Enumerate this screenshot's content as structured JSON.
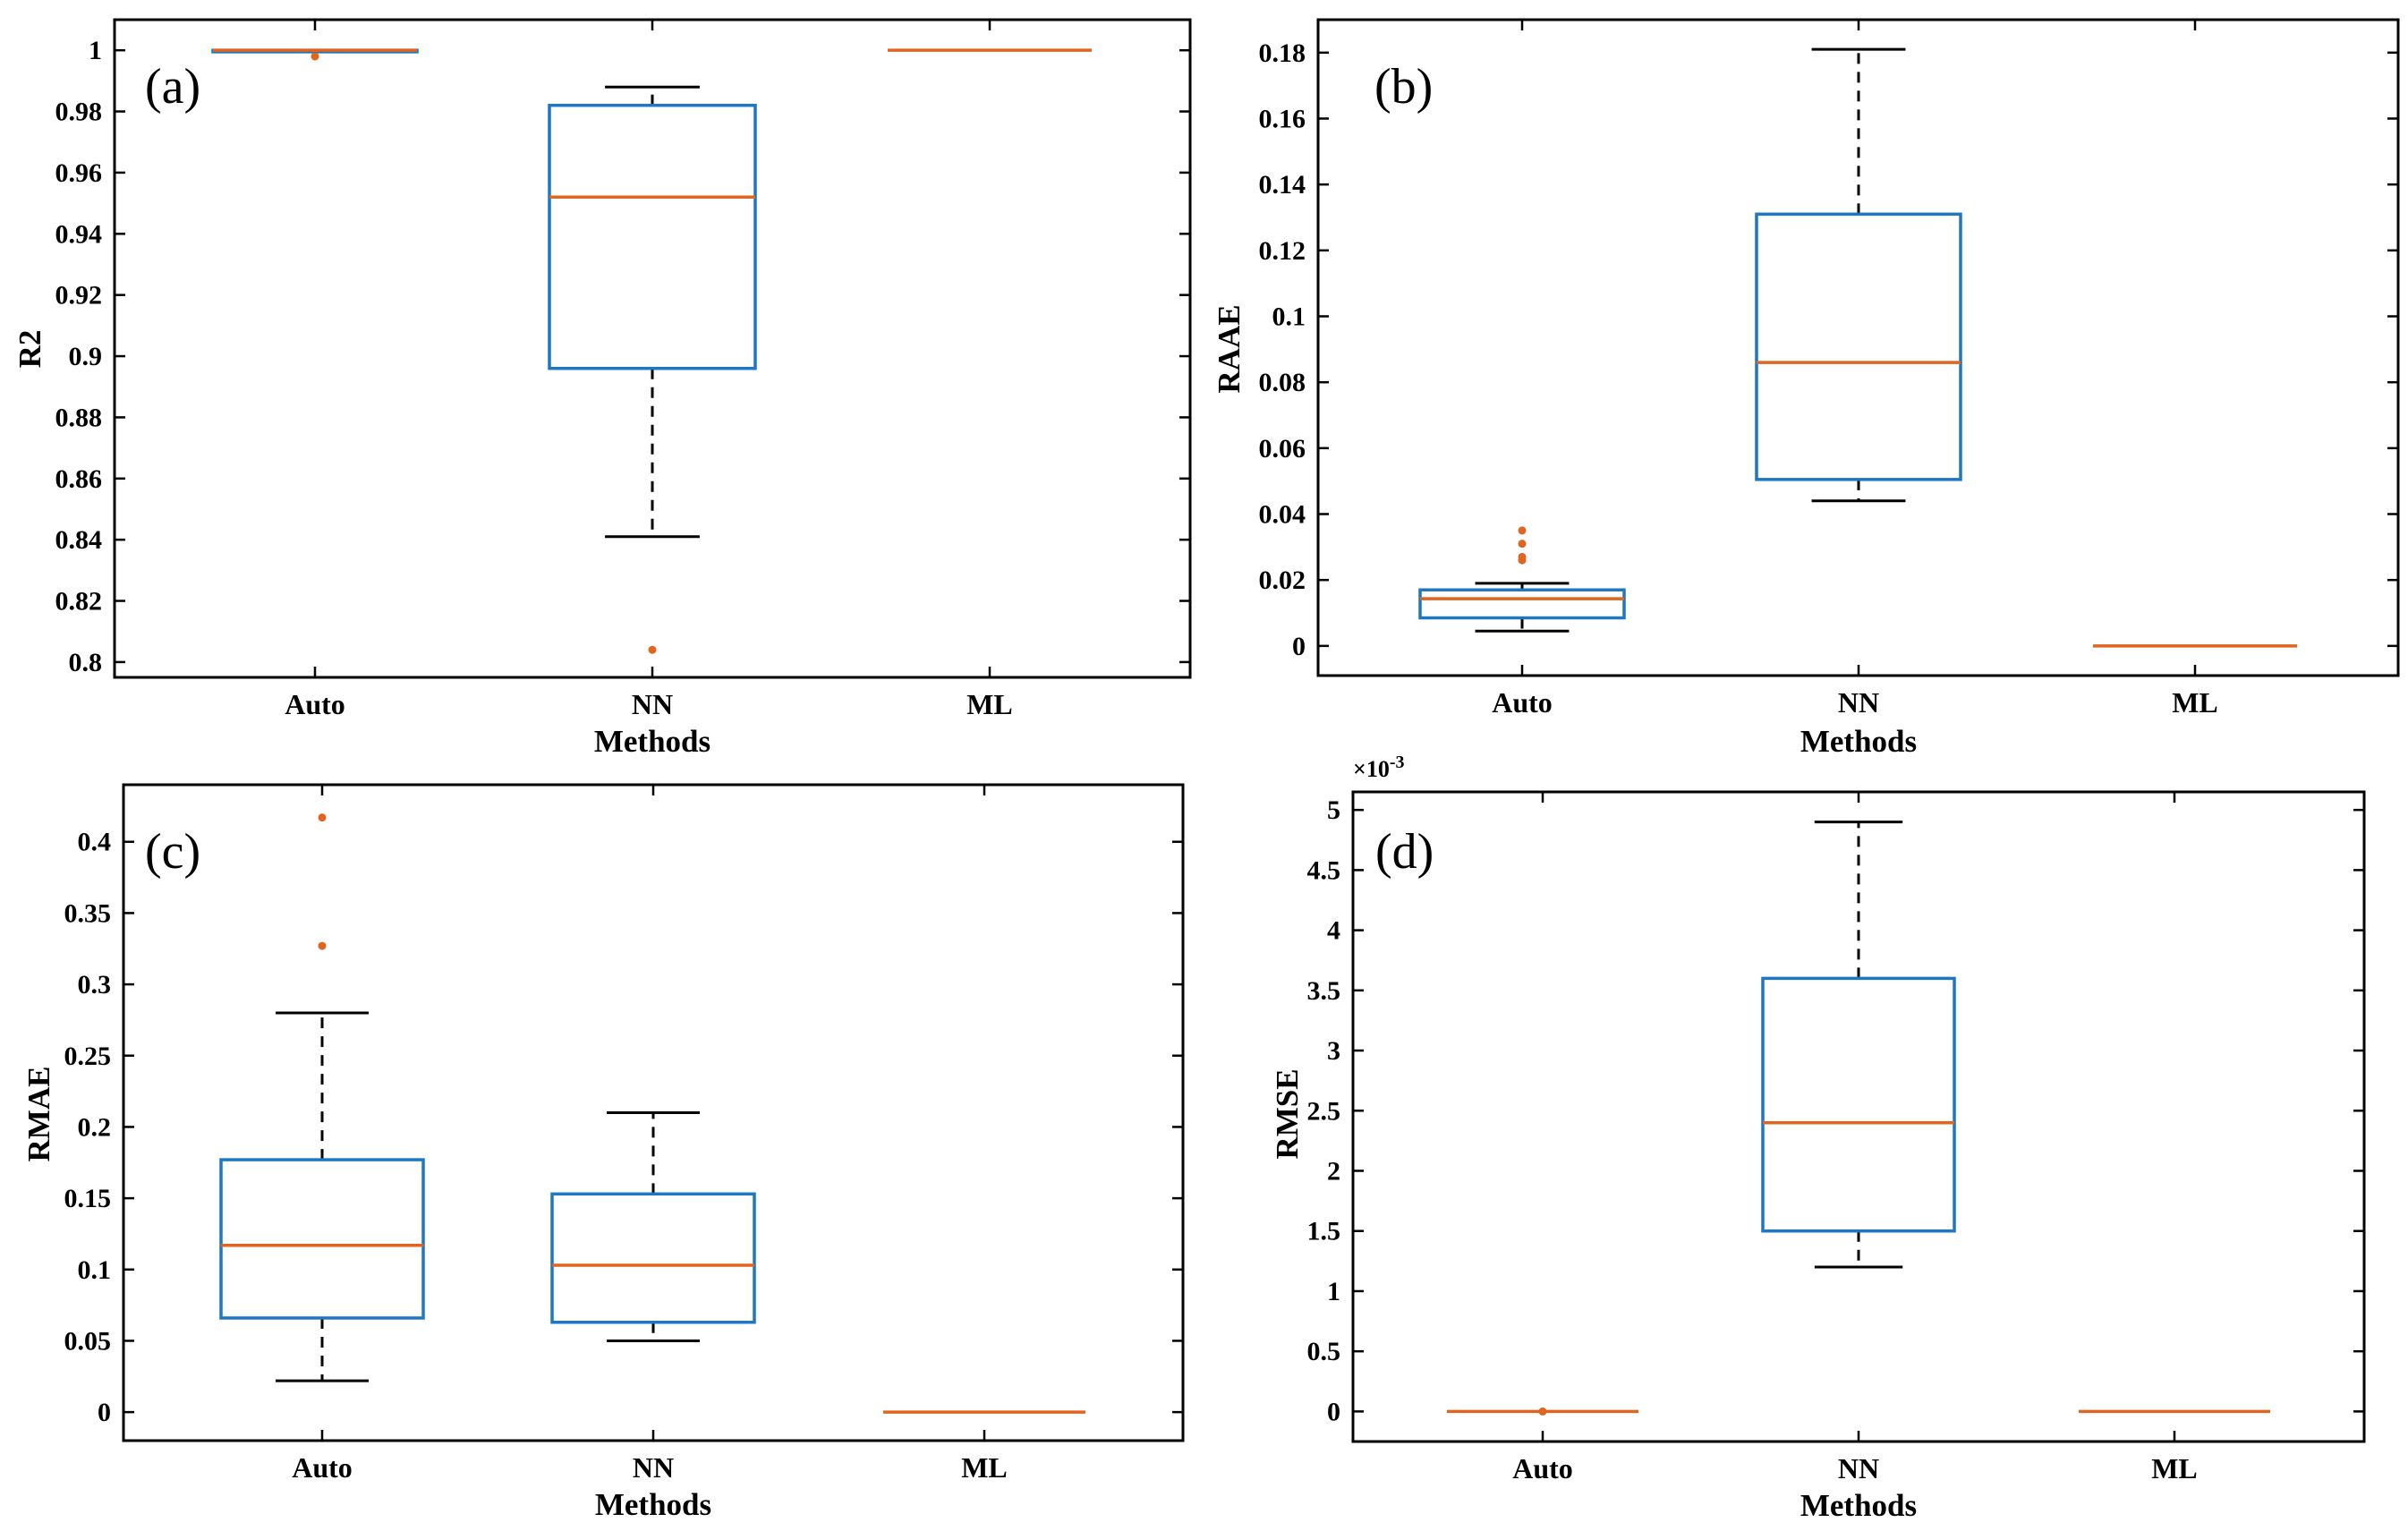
{
  "colors": {
    "box": "#1f77c4",
    "median": "#e0651e",
    "outlier": "#e0651e",
    "whisker": "#000000"
  },
  "chart_data": [
    {
      "type": "box",
      "panel": "(a)",
      "xlabel": "",
      "ylabel": "R2",
      "ylim": [
        0.795,
        1.01
      ],
      "yticks": [
        0.8,
        0.82,
        0.84,
        0.86,
        0.88,
        0.9,
        0.92,
        0.94,
        0.96,
        0.98,
        1
      ],
      "ytick_labels": [
        "0.8",
        "0.82",
        "0.84",
        "0.86",
        "0.88",
        "0.9",
        "0.92",
        "0.94",
        "0.96",
        "0.98",
        "1"
      ],
      "categories": [
        "Auto",
        "NN",
        "ML"
      ],
      "boxes": [
        {
          "whisker_low": 0.9995,
          "q1": 0.9995,
          "median": 1.0,
          "q3": 1.0,
          "whisker_high": 1.0,
          "outliers": [
            0.998
          ]
        },
        {
          "whisker_low": 0.841,
          "q1": 0.896,
          "median": 0.952,
          "q3": 0.982,
          "whisker_high": 0.988,
          "outliers": [
            0.804
          ]
        },
        {
          "whisker_low": 1.0,
          "q1": 1.0,
          "median": 1.0,
          "q3": 1.0,
          "whisker_high": 1.0,
          "outliers": []
        }
      ]
    },
    {
      "type": "box",
      "panel": "(b)",
      "xlabel": "Methods",
      "ylabel": "RAAE",
      "ylim": [
        -0.009,
        0.19
      ],
      "yticks": [
        0,
        0.02,
        0.04,
        0.06,
        0.08,
        0.1,
        0.12,
        0.14,
        0.16,
        0.18
      ],
      "ytick_labels": [
        "0",
        "0.02",
        "0.04",
        "0.06",
        "0.08",
        "0.1",
        "0.12",
        "0.14",
        "0.16",
        "0.18"
      ],
      "categories": [
        "Auto",
        "NN",
        "ML"
      ],
      "boxes": [
        {
          "whisker_low": 0.0045,
          "q1": 0.0085,
          "median": 0.0143,
          "q3": 0.017,
          "whisker_high": 0.019,
          "outliers": [
            0.026,
            0.027,
            0.031,
            0.035
          ]
        },
        {
          "whisker_low": 0.044,
          "q1": 0.0505,
          "median": 0.086,
          "q3": 0.131,
          "whisker_high": 0.181,
          "outliers": []
        },
        {
          "whisker_low": 0.0,
          "q1": 0.0,
          "median": 0.0,
          "q3": 0.0,
          "whisker_high": 0.0,
          "outliers": []
        }
      ]
    },
    {
      "type": "box",
      "panel": "(c)",
      "xlabel": "Methods",
      "ylabel": "RMAE",
      "ylim": [
        -0.02,
        0.44
      ],
      "yticks": [
        0,
        0.05,
        0.1,
        0.15,
        0.2,
        0.25,
        0.3,
        0.35,
        0.4
      ],
      "ytick_labels": [
        "0",
        "0.05",
        "0.1",
        "0.15",
        "0.2",
        "0.25",
        "0.3",
        "0.35",
        "0.4"
      ],
      "categories": [
        "Auto",
        "NN",
        "ML"
      ],
      "boxes": [
        {
          "whisker_low": 0.022,
          "q1": 0.066,
          "median": 0.117,
          "q3": 0.177,
          "whisker_high": 0.28,
          "outliers": [
            0.327,
            0.417
          ]
        },
        {
          "whisker_low": 0.05,
          "q1": 0.063,
          "median": 0.103,
          "q3": 0.153,
          "whisker_high": 0.21,
          "outliers": []
        },
        {
          "whisker_low": 0.0,
          "q1": 0.0,
          "median": 0.0,
          "q3": 0.0,
          "whisker_high": 0.0,
          "outliers": []
        }
      ]
    },
    {
      "type": "box",
      "panel": "(d)",
      "xlabel": "Methods",
      "ylabel": "RMSE",
      "y_multiplier": "×10",
      "y_exponent": "-3",
      "ylim": [
        -0.25,
        5.15
      ],
      "yticks": [
        0,
        0.5,
        1,
        1.5,
        2,
        2.5,
        3,
        3.5,
        4,
        4.5,
        5
      ],
      "ytick_labels": [
        "0",
        "0.5",
        "1",
        "1.5",
        "2",
        "2.5",
        "3",
        "3.5",
        "4",
        "4.5",
        "5"
      ],
      "categories": [
        "Auto",
        "NN",
        "ML"
      ],
      "boxes": [
        {
          "whisker_low": 0.0,
          "q1": 0.0,
          "median": 0.0,
          "q3": 0.0,
          "whisker_high": 0.0,
          "outliers": [
            0.0
          ]
        },
        {
          "whisker_low": 1.2,
          "q1": 1.5,
          "median": 2.4,
          "q3": 3.6,
          "whisker_high": 4.9,
          "outliers": []
        },
        {
          "whisker_low": 0.0,
          "q1": 0.0,
          "median": 0.0,
          "q3": 0.0,
          "whisker_high": 0.0,
          "outliers": []
        }
      ]
    }
  ]
}
